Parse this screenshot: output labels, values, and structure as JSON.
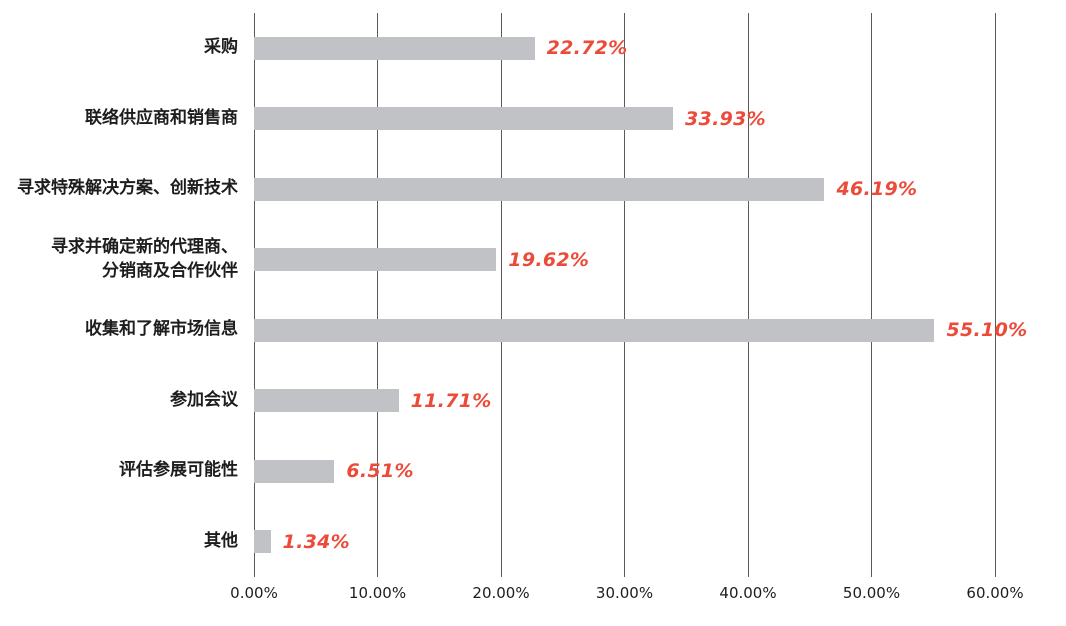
{
  "chart_data": {
    "type": "bar",
    "orientation": "horizontal",
    "title": "",
    "xlabel": "",
    "ylabel": "",
    "categories": [
      "采购",
      "联络供应商和销售商",
      "寻求特殊解决方案、创新技术",
      "寻求并确定新的代理商、分销商及合作伙伴",
      "收集和了解市场信息",
      "参加会议",
      "评估参展可能性",
      "其他"
    ],
    "category_lines": [
      [
        "采购"
      ],
      [
        "联络供应商和销售商"
      ],
      [
        "寻求特殊解决方案、创新技术"
      ],
      [
        "寻求并确定新的代理商、",
        "分销商及合作伙伴"
      ],
      [
        "收集和了解市场信息"
      ],
      [
        "参加会议"
      ],
      [
        "评估参展可能性"
      ],
      [
        "其他"
      ]
    ],
    "values": [
      22.72,
      33.93,
      46.19,
      19.62,
      55.1,
      11.71,
      6.51,
      1.34
    ],
    "value_labels": [
      "22.72%",
      "33.93%",
      "46.19%",
      "19.62%",
      "55.10%",
      "11.71%",
      "6.51%",
      "1.34%"
    ],
    "x_ticks": [
      "0.00%",
      "10.00%",
      "20.00%",
      "30.00%",
      "40.00%",
      "50.00%",
      "60.00%"
    ],
    "xlim": [
      0,
      60
    ],
    "grid": "vertical-gridlines-on",
    "legend": "none",
    "colors": {
      "bar": "#c0c2c6",
      "value_label": "#ec4b3a",
      "gridline": "#5a5a5a",
      "text": "#1d1d1f",
      "background": "#ffffff"
    }
  }
}
